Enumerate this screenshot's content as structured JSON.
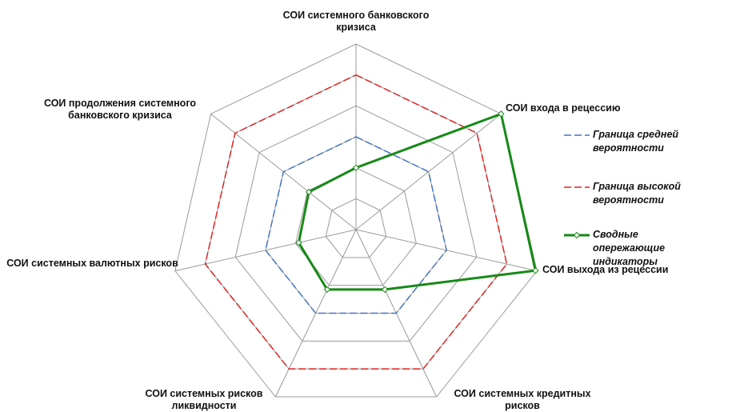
{
  "chart_data": {
    "type": "radar",
    "categories": [
      "СОИ системного банковского кризиса",
      "СОИ входа в рецессию",
      "СОИ выхода из рецессии",
      "СОИ системных кредитных рисков",
      "СОИ системных рисков ликвидности",
      "СОИ системных валютных рисков",
      "СОИ продолжения системного банковского кризиса"
    ],
    "series": [
      {
        "name": "Граница средней вероятности",
        "color": "#4472c4",
        "values": [
          0.6,
          0.6,
          0.6,
          0.6,
          0.6,
          0.6,
          0.6
        ]
      },
      {
        "name": "Граница высокой вероятности",
        "color": "#e02020",
        "values": [
          1.0,
          1.0,
          1.0,
          1.0,
          1.0,
          1.0,
          1.0
        ]
      },
      {
        "name": "Сводные опережающие индикаторы",
        "color": "#168a16",
        "values": [
          0.4,
          1.2,
          1.19,
          0.43,
          0.43,
          0.38,
          0.39
        ]
      }
    ],
    "ylim": [
      0,
      1.2
    ],
    "yticks": [
      0.2,
      0.4,
      0.6,
      0.8,
      1.0,
      1.2
    ],
    "grid": true,
    "legend": "right"
  }
}
